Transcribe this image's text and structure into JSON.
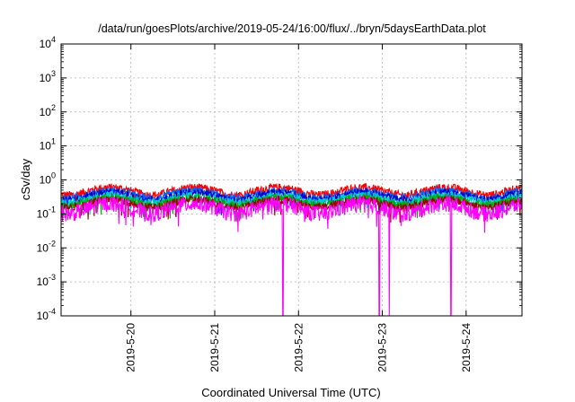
{
  "chart_data": {
    "type": "line",
    "title": "/data/run/goesPlots/archive/2019-05-24/16:00/flux/../bryn/5daysEarthData.plot",
    "xlabel": "Coordinated Universal Time (UTC)",
    "ylabel": "cSv/day",
    "x_scale": "time",
    "y_scale": "log",
    "xlim": [
      "2019-05-19T04:00",
      "2019-05-24T16:00"
    ],
    "ylim": [
      0.0001,
      10000
    ],
    "x_ticks": [
      "2019-5-20",
      "2019-5-21",
      "2019-5-22",
      "2019-5-23",
      "2019-5-24"
    ],
    "y_ticks": [
      {
        "base": "10",
        "exp": "-4",
        "value": 0.0001
      },
      {
        "base": "10",
        "exp": "-3",
        "value": 0.001
      },
      {
        "base": "10",
        "exp": "-2",
        "value": 0.01
      },
      {
        "base": "10",
        "exp": "-1",
        "value": 0.1
      },
      {
        "base": "10",
        "exp": "0",
        "value": 1
      },
      {
        "base": "10",
        "exp": "1",
        "value": 10
      },
      {
        "base": "10",
        "exp": "2",
        "value": 100
      },
      {
        "base": "10",
        "exp": "3",
        "value": 1000
      },
      {
        "base": "10",
        "exp": "4",
        "value": 10000
      }
    ],
    "grid": true,
    "legend": "none",
    "series": [
      {
        "color": "#ff0000",
        "level": 0.6,
        "daily_dip": 0.6
      },
      {
        "color": "#0066ff",
        "level": 0.48,
        "daily_dip": 0.6
      },
      {
        "color": "#0000cc",
        "level": 0.42,
        "daily_dip": 0.6
      },
      {
        "color": "#00cccc",
        "level": 0.36,
        "daily_dip": 0.6
      },
      {
        "color": "#00aa00",
        "level": 0.3,
        "daily_dip": 0.6
      },
      {
        "color": "#990000",
        "level": 0.26,
        "daily_dip": 0.6
      },
      {
        "color": "#ff00ff",
        "level": 0.2,
        "daily_dip": 0.5,
        "dropouts": [
          "2019-05-21T19:30",
          "2019-05-22T23:10",
          "2019-05-23T02:00",
          "2019-05-23T19:40"
        ]
      }
    ]
  }
}
